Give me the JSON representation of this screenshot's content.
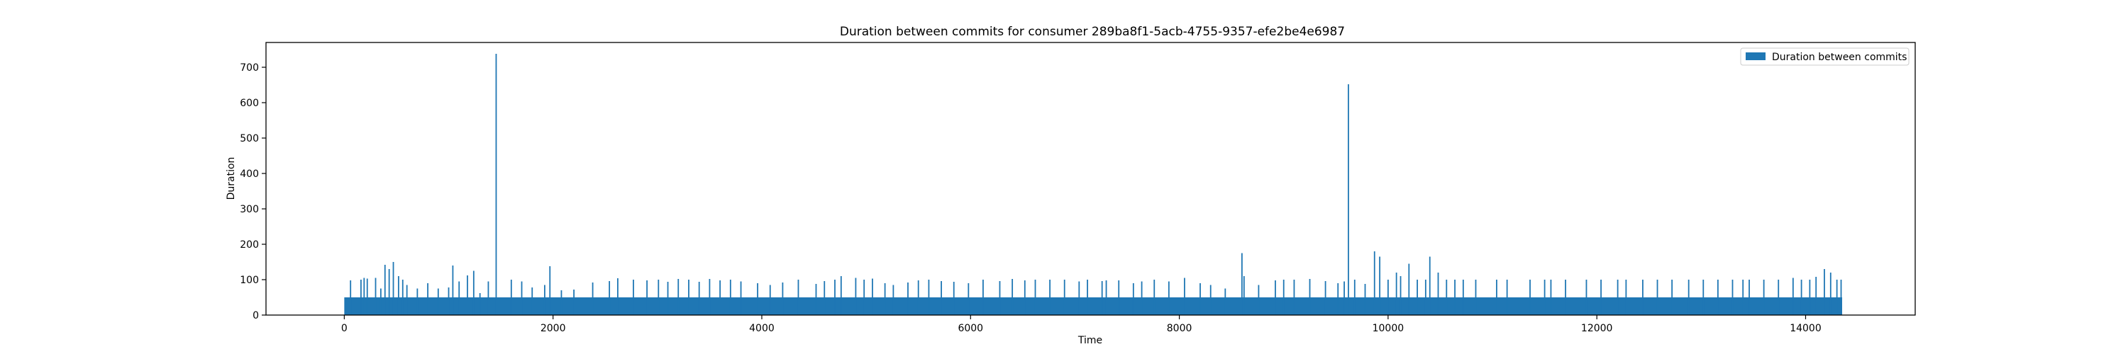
{
  "chart_data": {
    "type": "bar",
    "title": "Duration between commits for consumer 289ba8f1-5acb-4755-9357-efe2be4e6987",
    "xlabel": "Time",
    "ylabel": "Duration",
    "xlim": [
      -750,
      15050
    ],
    "ylim": [
      0,
      770
    ],
    "xticks": [
      0,
      2000,
      4000,
      6000,
      8000,
      10000,
      12000,
      14000
    ],
    "yticks": [
      0,
      100,
      200,
      300,
      400,
      500,
      600,
      700
    ],
    "grid": false,
    "legend_position": "top-right",
    "color": "#1f77b4",
    "series": [
      {
        "name": "Duration between commits",
        "baseline": {
          "x_start": 0,
          "x_end": 14350,
          "value": 50
        },
        "spikes": [
          [
            60,
            98
          ],
          [
            160,
            100
          ],
          [
            190,
            105
          ],
          [
            220,
            103
          ],
          [
            300,
            105
          ],
          [
            350,
            75
          ],
          [
            390,
            142
          ],
          [
            430,
            130
          ],
          [
            470,
            150
          ],
          [
            520,
            110
          ],
          [
            560,
            100
          ],
          [
            600,
            85
          ],
          [
            700,
            75
          ],
          [
            800,
            90
          ],
          [
            900,
            75
          ],
          [
            1000,
            78
          ],
          [
            1040,
            140
          ],
          [
            1100,
            95
          ],
          [
            1180,
            112
          ],
          [
            1240,
            125
          ],
          [
            1300,
            62
          ],
          [
            1380,
            95
          ],
          [
            1455,
            738
          ],
          [
            1600,
            100
          ],
          [
            1700,
            95
          ],
          [
            1800,
            78
          ],
          [
            1920,
            85
          ],
          [
            1970,
            138
          ],
          [
            2080,
            70
          ],
          [
            2200,
            72
          ],
          [
            2380,
            92
          ],
          [
            2540,
            96
          ],
          [
            2620,
            104
          ],
          [
            2770,
            100
          ],
          [
            2900,
            98
          ],
          [
            3010,
            100
          ],
          [
            3100,
            94
          ],
          [
            3200,
            102
          ],
          [
            3300,
            100
          ],
          [
            3400,
            94
          ],
          [
            3500,
            102
          ],
          [
            3600,
            98
          ],
          [
            3700,
            100
          ],
          [
            3800,
            95
          ],
          [
            3960,
            90
          ],
          [
            4080,
            85
          ],
          [
            4200,
            92
          ],
          [
            4350,
            100
          ],
          [
            4520,
            88
          ],
          [
            4600,
            96
          ],
          [
            4700,
            100
          ],
          [
            4760,
            110
          ],
          [
            4900,
            105
          ],
          [
            4980,
            100
          ],
          [
            5060,
            103
          ],
          [
            5180,
            90
          ],
          [
            5260,
            85
          ],
          [
            5400,
            92
          ],
          [
            5500,
            98
          ],
          [
            5600,
            100
          ],
          [
            5720,
            96
          ],
          [
            5840,
            94
          ],
          [
            5980,
            90
          ],
          [
            6120,
            100
          ],
          [
            6280,
            96
          ],
          [
            6400,
            102
          ],
          [
            6520,
            98
          ],
          [
            6620,
            100
          ],
          [
            6760,
            100
          ],
          [
            6900,
            100
          ],
          [
            7040,
            95
          ],
          [
            7120,
            100
          ],
          [
            7260,
            96
          ],
          [
            7300,
            98
          ],
          [
            7420,
            98
          ],
          [
            7560,
            90
          ],
          [
            7640,
            95
          ],
          [
            7760,
            100
          ],
          [
            7900,
            95
          ],
          [
            8050,
            105
          ],
          [
            8200,
            90
          ],
          [
            8300,
            85
          ],
          [
            8440,
            75
          ],
          [
            8600,
            175
          ],
          [
            8620,
            110
          ],
          [
            8760,
            85
          ],
          [
            8920,
            98
          ],
          [
            9000,
            100
          ],
          [
            9100,
            100
          ],
          [
            9250,
            102
          ],
          [
            9400,
            96
          ],
          [
            9520,
            90
          ],
          [
            9580,
            95
          ],
          [
            9620,
            652
          ],
          [
            9680,
            100
          ],
          [
            9780,
            88
          ],
          [
            9870,
            180
          ],
          [
            9920,
            165
          ],
          [
            10000,
            100
          ],
          [
            10080,
            120
          ],
          [
            10120,
            110
          ],
          [
            10200,
            145
          ],
          [
            10280,
            100
          ],
          [
            10360,
            100
          ],
          [
            10400,
            165
          ],
          [
            10480,
            120
          ],
          [
            10560,
            100
          ],
          [
            10640,
            100
          ],
          [
            10720,
            100
          ],
          [
            10840,
            100
          ],
          [
            11040,
            100
          ],
          [
            11140,
            100
          ],
          [
            11360,
            100
          ],
          [
            11500,
            100
          ],
          [
            11560,
            100
          ],
          [
            11700,
            100
          ],
          [
            11900,
            100
          ],
          [
            12040,
            100
          ],
          [
            12200,
            100
          ],
          [
            12280,
            100
          ],
          [
            12440,
            100
          ],
          [
            12580,
            100
          ],
          [
            12720,
            100
          ],
          [
            12880,
            100
          ],
          [
            13020,
            100
          ],
          [
            13160,
            100
          ],
          [
            13300,
            100
          ],
          [
            13400,
            100
          ],
          [
            13460,
            100
          ],
          [
            13600,
            100
          ],
          [
            13740,
            100
          ],
          [
            13880,
            105
          ],
          [
            13960,
            100
          ],
          [
            14040,
            100
          ],
          [
            14100,
            108
          ],
          [
            14180,
            130
          ],
          [
            14240,
            120
          ],
          [
            14300,
            100
          ],
          [
            14340,
            100
          ]
        ]
      }
    ]
  }
}
